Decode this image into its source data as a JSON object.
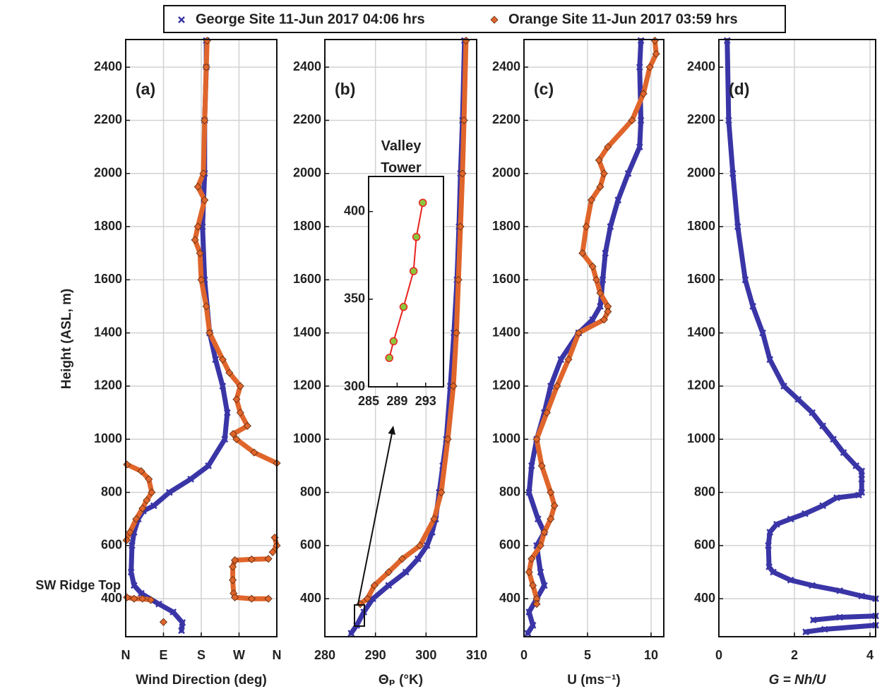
{
  "chart_data": [
    {
      "type": "line",
      "label": "(a)",
      "ylabel": "Height (ASL, m)",
      "xlabel": "Wind Direction (deg)",
      "legend": "top",
      "xlim": [
        0,
        360
      ],
      "xticks": [
        {
          "value": 0,
          "label": "N"
        },
        {
          "value": 90,
          "label": "E"
        },
        {
          "value": 180,
          "label": "S"
        },
        {
          "value": 270,
          "label": "W"
        },
        {
          "value": 360,
          "label": "N"
        }
      ],
      "ylim": [
        257,
        2504
      ],
      "yticks": [
        400,
        600,
        800,
        1000,
        1200,
        1400,
        1600,
        1800,
        2000,
        2200,
        2400
      ],
      "grid": true,
      "annotation": {
        "text": "SW Ridge Top",
        "y": 448
      },
      "series": [
        {
          "name": "George Site 11-Jun 2017 04:06 hrs",
          "color": "#3a35a6",
          "marker": "x",
          "x": [
            192,
            192,
            188,
            188,
            183,
            188,
            200,
            214,
            231,
            242,
            236,
            197,
            155,
            104,
            67,
            42,
            30,
            20,
            15,
            13,
            20,
            37,
            79,
            113,
            135,
            133
          ],
          "y": [
            2500,
            2400,
            2200,
            2000,
            1800,
            1600,
            1400,
            1300,
            1200,
            1100,
            1000,
            900,
            850,
            800,
            750,
            730,
            700,
            650,
            600,
            500,
            450,
            420,
            380,
            350,
            310,
            280
          ]
        },
        {
          "name": "Orange Site 11-Jun 2017 03:59 hrs",
          "color": "#e0652b",
          "marker": "diamond",
          "x": [
            194,
            192,
            188,
            185,
            172,
            188,
            172,
            165,
            177,
            180,
            192,
            200,
            231,
            247,
            273,
            264,
            273,
            290,
            256,
            264,
            306,
            360,
            null,
            3,
            37,
            55,
            62,
            50,
            40,
            25,
            10,
            2,
            null,
            355,
            360,
            350,
            null,
            340,
            300,
            260,
            255,
            255,
            257,
            260,
            300,
            340,
            null,
            3,
            20,
            40,
            60,
            null,
            90
          ],
          "y": [
            2500,
            2400,
            2200,
            2000,
            1950,
            1900,
            1800,
            1750,
            1700,
            1600,
            1500,
            1400,
            1300,
            1250,
            1200,
            1150,
            1100,
            1050,
            1020,
            1000,
            950,
            910,
            null,
            905,
            880,
            850,
            800,
            770,
            740,
            700,
            650,
            620,
            null,
            630,
            600,
            575,
            null,
            550,
            548,
            545,
            520,
            470,
            420,
            405,
            400,
            400,
            null,
            405,
            400,
            400,
            395,
            null,
            312
          ]
        }
      ]
    },
    {
      "type": "line",
      "label": "(b)",
      "xlabel": "Θₚ (°K)",
      "xlim": [
        280,
        310
      ],
      "xticks": [
        280,
        290,
        300,
        310
      ],
      "ylim": [
        257,
        2504
      ],
      "yticks": [
        400,
        600,
        800,
        1000,
        1200,
        1400,
        1600,
        1800,
        2000,
        2200,
        2400
      ],
      "grid": true,
      "series": [
        {
          "color": "#3a35a6",
          "marker": "x",
          "x": [
            307.6,
            307.2,
            306.8,
            306.5,
            306.1,
            305.5,
            304.8,
            304,
            303.3,
            302.6,
            301.9,
            301.2,
            300.2,
            298.4,
            296,
            292.6,
            289.5,
            287.7,
            286.3,
            285.2
          ],
          "y": [
            2500,
            2200,
            2000,
            1800,
            1600,
            1400,
            1200,
            1000,
            900,
            800,
            700,
            650,
            600,
            550,
            500,
            450,
            400,
            350,
            300,
            270
          ]
        },
        {
          "color": "#e0652b",
          "marker": "diamond",
          "x": [
            307.9,
            307.5,
            307.2,
            306.8,
            306.4,
            306,
            305.4,
            304.3,
            303,
            301.6,
            298.8,
            295.3,
            292.6,
            289.8,
            288.4,
            287
          ],
          "y": [
            2500,
            2200,
            2000,
            1800,
            1600,
            1400,
            1200,
            1000,
            800,
            700,
            600,
            550,
            500,
            450,
            400,
            380
          ]
        }
      ]
    },
    {
      "type": "line",
      "label": "(c)",
      "xlabel": "U (ms⁻¹)",
      "xlim": [
        0,
        11
      ],
      "xticks": [
        0,
        5,
        10
      ],
      "ylim": [
        257,
        2504
      ],
      "yticks": [
        400,
        600,
        800,
        1000,
        1200,
        1400,
        1600,
        1800,
        2000,
        2200,
        2400
      ],
      "grid": true,
      "series": [
        {
          "color": "#3a35a6",
          "marker": "x",
          "x": [
            9.2,
            9.1,
            9.2,
            9.1,
            8.2,
            7.4,
            6.8,
            6.4,
            6.2,
            6.0,
            5.4,
            4.3,
            2.9,
            2.1,
            1.6,
            1.0,
            0.6,
            0.4,
            1.1,
            1.6,
            1.0,
            1.3,
            1.6,
            1.0,
            0.4,
            0.7,
            0.3
          ],
          "y": [
            2500,
            2400,
            2200,
            2100,
            2000,
            1900,
            1800,
            1700,
            1600,
            1500,
            1450,
            1400,
            1300,
            1200,
            1100,
            1000,
            900,
            800,
            700,
            650,
            600,
            500,
            450,
            400,
            350,
            300,
            270
          ]
        },
        {
          "color": "#e0652b",
          "marker": "diamond",
          "x": [
            10.3,
            10.4,
            9.9,
            9.4,
            8.5,
            6.6,
            5.9,
            6.3,
            6.0,
            5.3,
            4.9,
            4.6,
            5.4,
            5.7,
            6.0,
            6.6,
            6.6,
            6.3,
            4.3,
            3.5,
            2.6,
            1.8,
            1.0,
            1.4,
            2.1,
            2.4,
            2.1,
            1.6,
            1.3,
            0.6,
            0.4,
            0.7,
            1.0,
            1.0
          ],
          "y": [
            2500,
            2450,
            2400,
            2300,
            2200,
            2100,
            2050,
            2000,
            1950,
            1900,
            1800,
            1700,
            1650,
            1600,
            1550,
            1500,
            1480,
            1450,
            1400,
            1300,
            1200,
            1100,
            1000,
            900,
            800,
            750,
            700,
            650,
            600,
            550,
            500,
            450,
            400,
            380
          ]
        }
      ]
    },
    {
      "type": "line",
      "label": "(d)",
      "xlabel": "G = Nh/U",
      "xlim": [
        0,
        4.15
      ],
      "xticks": [
        0,
        2,
        4
      ],
      "ylim": [
        257,
        2504
      ],
      "yticks": [
        400,
        600,
        800,
        1000,
        1200,
        1400,
        1600,
        1800,
        2000,
        2200,
        2400
      ],
      "grid": true,
      "series": [
        {
          "color": "#3a35a6",
          "marker": "x",
          "x": [
            0.22,
            0.26,
            0.37,
            0.5,
            0.7,
            0.9,
            1.16,
            1.35,
            1.72,
            2.1,
            2.47,
            2.75,
            3.03,
            3.3,
            3.63,
            3.78,
            3.78,
            3.78,
            3.7,
            3.12,
            2.75,
            2.28,
            1.9,
            1.53,
            1.35,
            1.31,
            1.33,
            1.44,
            1.9,
            2.47,
            3.2,
            3.78,
            4.15,
            null,
            4.15,
            3.2,
            2.5,
            null,
            4.15,
            2.8,
            2.3
          ],
          "y": [
            2500,
            2200,
            2000,
            1800,
            1600,
            1500,
            1400,
            1300,
            1200,
            1150,
            1100,
            1050,
            1000,
            950,
            900,
            880,
            850,
            800,
            790,
            780,
            750,
            720,
            700,
            680,
            650,
            600,
            520,
            500,
            470,
            450,
            430,
            410,
            400,
            null,
            335,
            330,
            320,
            null,
            300,
            285,
            275
          ]
        }
      ]
    },
    {
      "type": "line",
      "title": "Valley Tower",
      "xlim": [
        285,
        295.5
      ],
      "xticks": [
        285,
        289,
        293
      ],
      "ylim": [
        300,
        420
      ],
      "yticks": [
        300,
        350,
        400
      ],
      "series": [
        {
          "color": "#e8231e",
          "marker": "circle",
          "marker_color": "#8cc63e",
          "x": [
            287.9,
            288.5,
            289.9,
            291.3,
            291.7,
            292.6
          ],
          "y": [
            316.5,
            326,
            345.6,
            366,
            385.5,
            405
          ]
        }
      ]
    }
  ]
}
